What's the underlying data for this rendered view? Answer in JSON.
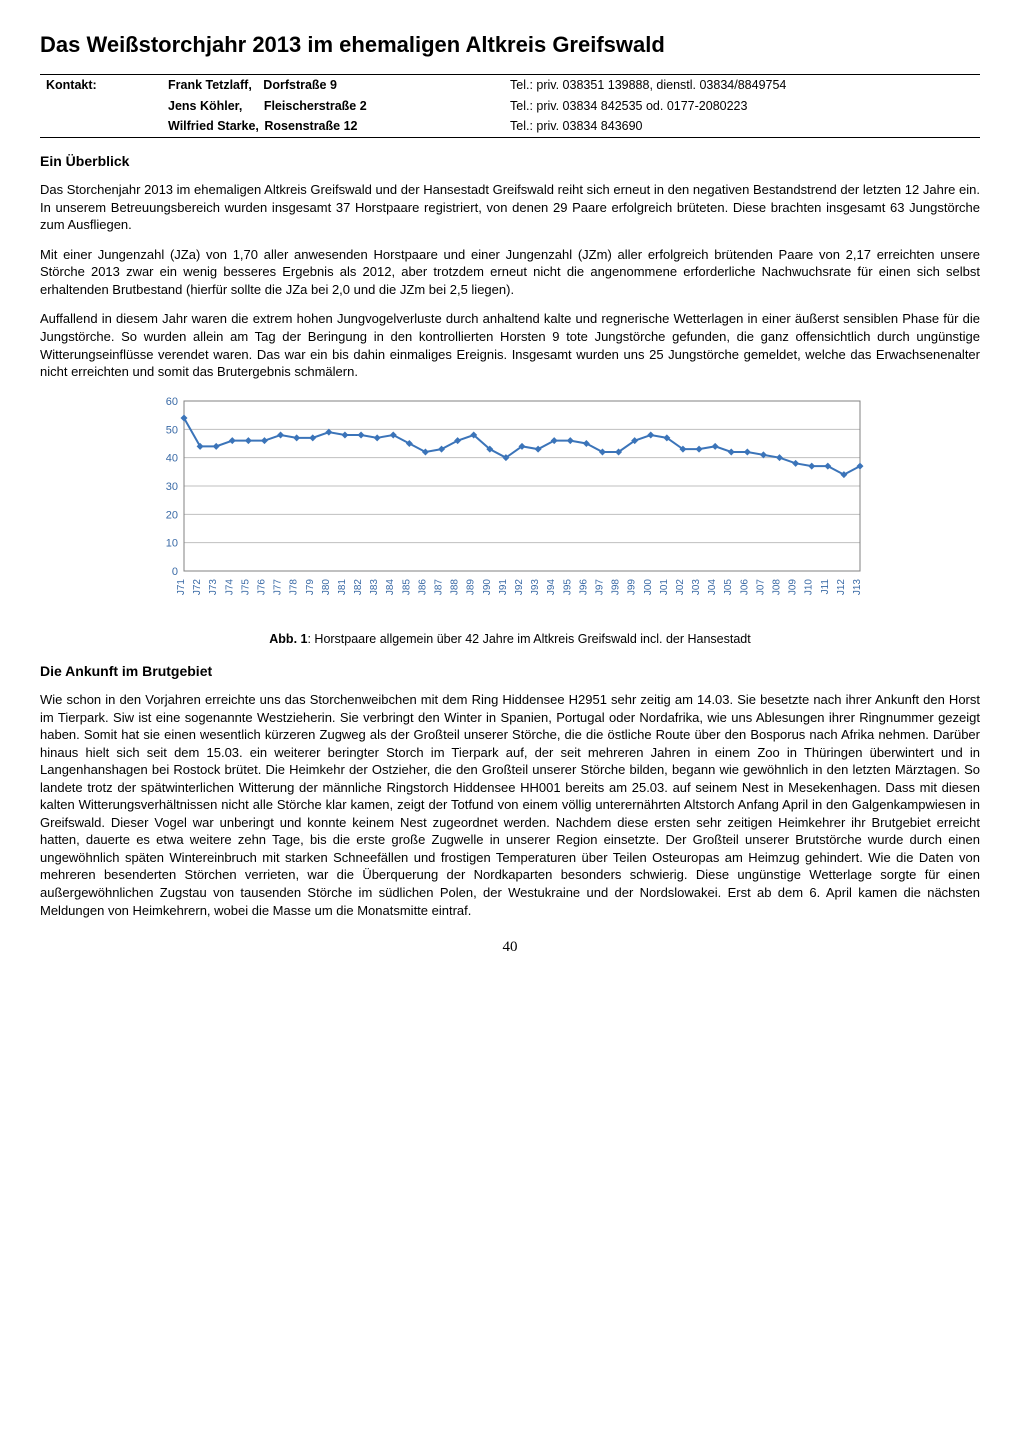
{
  "title": "Das Weißstorchjahr 2013 im ehemaligen Altkreis Greifswald",
  "contact": {
    "label": "Kontakt:",
    "rows": [
      {
        "name": "Frank Tetzlaff,",
        "addr": "Dorfstraße 9",
        "tel": "Tel.: priv. 038351 139888, dienstl. 03834/8849754"
      },
      {
        "name": "Jens Köhler,",
        "addr": "Fleischerstraße 2",
        "tel": "Tel.: priv. 03834 842535 od. 0177-2080223"
      },
      {
        "name": "Wilfried Starke,",
        "addr": "Rosenstraße 12",
        "tel": "Tel.: priv. 03834 843690"
      }
    ]
  },
  "section1": {
    "heading": "Ein Überblick",
    "p1": "Das Storchenjahr 2013 im ehemaligen Altkreis Greifswald und der Hansestadt Greifswald reiht sich erneut in den negativen Bestandstrend der letzten 12 Jahre ein. In unserem Betreuungsbereich wurden insgesamt 37 Horstpaare registriert, von denen 29 Paare erfolgreich brüteten. Diese brachten insgesamt 63 Jungstörche zum Ausfliegen.",
    "p2": "Mit einer Jungenzahl (JZa) von 1,70 aller anwesenden Horstpaare und einer Jungenzahl (JZm) aller erfolgreich brütenden Paare von 2,17 erreichten unsere Störche 2013 zwar ein wenig besseres Ergebnis als 2012, aber trotzdem erneut nicht die angenommene erforderliche Nachwuchsrate für einen sich selbst erhaltenden Brutbestand (hierfür sollte die JZa bei 2,0 und die JZm bei 2,5 liegen).",
    "p3": "Auffallend in diesem Jahr waren die extrem hohen Jungvogelverluste durch anhaltend kalte und regnerische Wetterlagen in einer äußerst sensiblen Phase für die Jungstörche. So wurden allein am Tag der Beringung in den kontrollierten Horsten 9 tote Jungstörche gefunden, die ganz offensichtlich durch ungünstige Witterungseinflüsse verendet waren. Das war ein bis dahin einmaliges Ereignis. Insgesamt wurden uns 25 Jungstörche gemeldet, welche das Erwachsenenalter nicht erreichten und somit das Brutergebnis schmälern."
  },
  "chart": {
    "type": "line",
    "ylim": [
      0,
      60
    ],
    "ytick_step": 10,
    "yticks": [
      0,
      10,
      20,
      30,
      40,
      50,
      60
    ],
    "categories": [
      "J71",
      "J72",
      "J73",
      "J74",
      "J75",
      "J76",
      "J77",
      "J78",
      "J79",
      "J80",
      "J81",
      "J82",
      "J83",
      "J84",
      "J85",
      "J86",
      "J87",
      "J88",
      "J89",
      "J90",
      "J91",
      "J92",
      "J93",
      "J94",
      "J95",
      "J96",
      "J97",
      "J98",
      "J99",
      "J00",
      "J01",
      "J02",
      "J03",
      "J04",
      "J05",
      "J06",
      "J07",
      "J08",
      "J09",
      "J10",
      "J11",
      "J12",
      "J13"
    ],
    "values": [
      54,
      44,
      44,
      46,
      46,
      46,
      48,
      47,
      47,
      49,
      48,
      48,
      47,
      48,
      45,
      42,
      43,
      46,
      48,
      43,
      40,
      44,
      43,
      46,
      46,
      45,
      42,
      42,
      46,
      48,
      47,
      43,
      43,
      44,
      42,
      42,
      41,
      40,
      38,
      37,
      37,
      34,
      37
    ],
    "line_color": "#3b74b9",
    "marker_color": "#3b74b9",
    "marker_size": 4,
    "line_width": 2,
    "grid_color": "#bfbfbf",
    "axis_color": "#808080",
    "background_color": "#ffffff",
    "tick_font_color": "#3a6aa6",
    "tick_fontsize": 10
  },
  "chart_caption_prefix": "Abb. 1",
  "chart_caption_rest": ": Horstpaare allgemein über 42 Jahre im Altkreis Greifswald incl. der Hansestadt",
  "section2": {
    "heading": "Die Ankunft im Brutgebiet",
    "p1": "Wie schon in den Vorjahren erreichte uns das Storchenweibchen mit dem Ring Hiddensee H2951 sehr zeitig am 14.03. Sie besetzte nach ihrer Ankunft den Horst im Tierpark. Siw ist eine sogenannte Westzieherin. Sie verbringt den Winter in Spanien, Portugal oder Nordafrika, wie uns Ablesungen ihrer Ringnummer gezeigt haben. Somit hat sie einen wesentlich kürzeren Zugweg als der Großteil unserer Störche, die die östliche Route über den Bosporus nach Afrika nehmen. Darüber hinaus hielt sich seit dem 15.03. ein weiterer beringter Storch im Tierpark auf, der seit mehreren Jahren in einem Zoo in Thüringen überwintert und in Langenhanshagen bei Rostock brütet. Die Heimkehr der Ostzieher, die den Großteil unserer Störche bilden, begann wie gewöhnlich in den letzten Märztagen. So landete trotz der spätwinterlichen Witterung der männliche Ringstorch Hiddensee HH001 bereits am 25.03. auf seinem Nest in Mesekenhagen. Dass mit diesen kalten  Witterungsverhältnissen nicht alle Störche klar kamen, zeigt der Totfund von einem völlig unterernährten Altstorch Anfang April in den Galgenkampwiesen in Greifswald. Dieser Vogel war unberingt und konnte keinem Nest zugeordnet werden. Nachdem diese ersten sehr zeitigen Heimkehrer ihr Brutgebiet erreicht hatten, dauerte es etwa weitere zehn Tage, bis die erste große Zugwelle in unserer Region einsetzte. Der Großteil unserer Brutstörche wurde durch einen ungewöhnlich späten Wintereinbruch mit starken Schneefällen und frostigen Temperaturen über Teilen Osteuropas am Heimzug gehindert. Wie die Daten von mehreren besenderten Störchen verrieten, war die Überquerung der Nordkaparten besonders schwierig. Diese ungünstige Wetterlage sorgte für einen außergewöhnlichen Zugstau von tausenden Störche im südlichen Polen, der Westukraine und der Nordslowakei. Erst ab dem 6. April kamen die nächsten Meldungen von Heimkehrern, wobei die Masse um die Monatsmitte eintraf."
  },
  "page_number": "40"
}
